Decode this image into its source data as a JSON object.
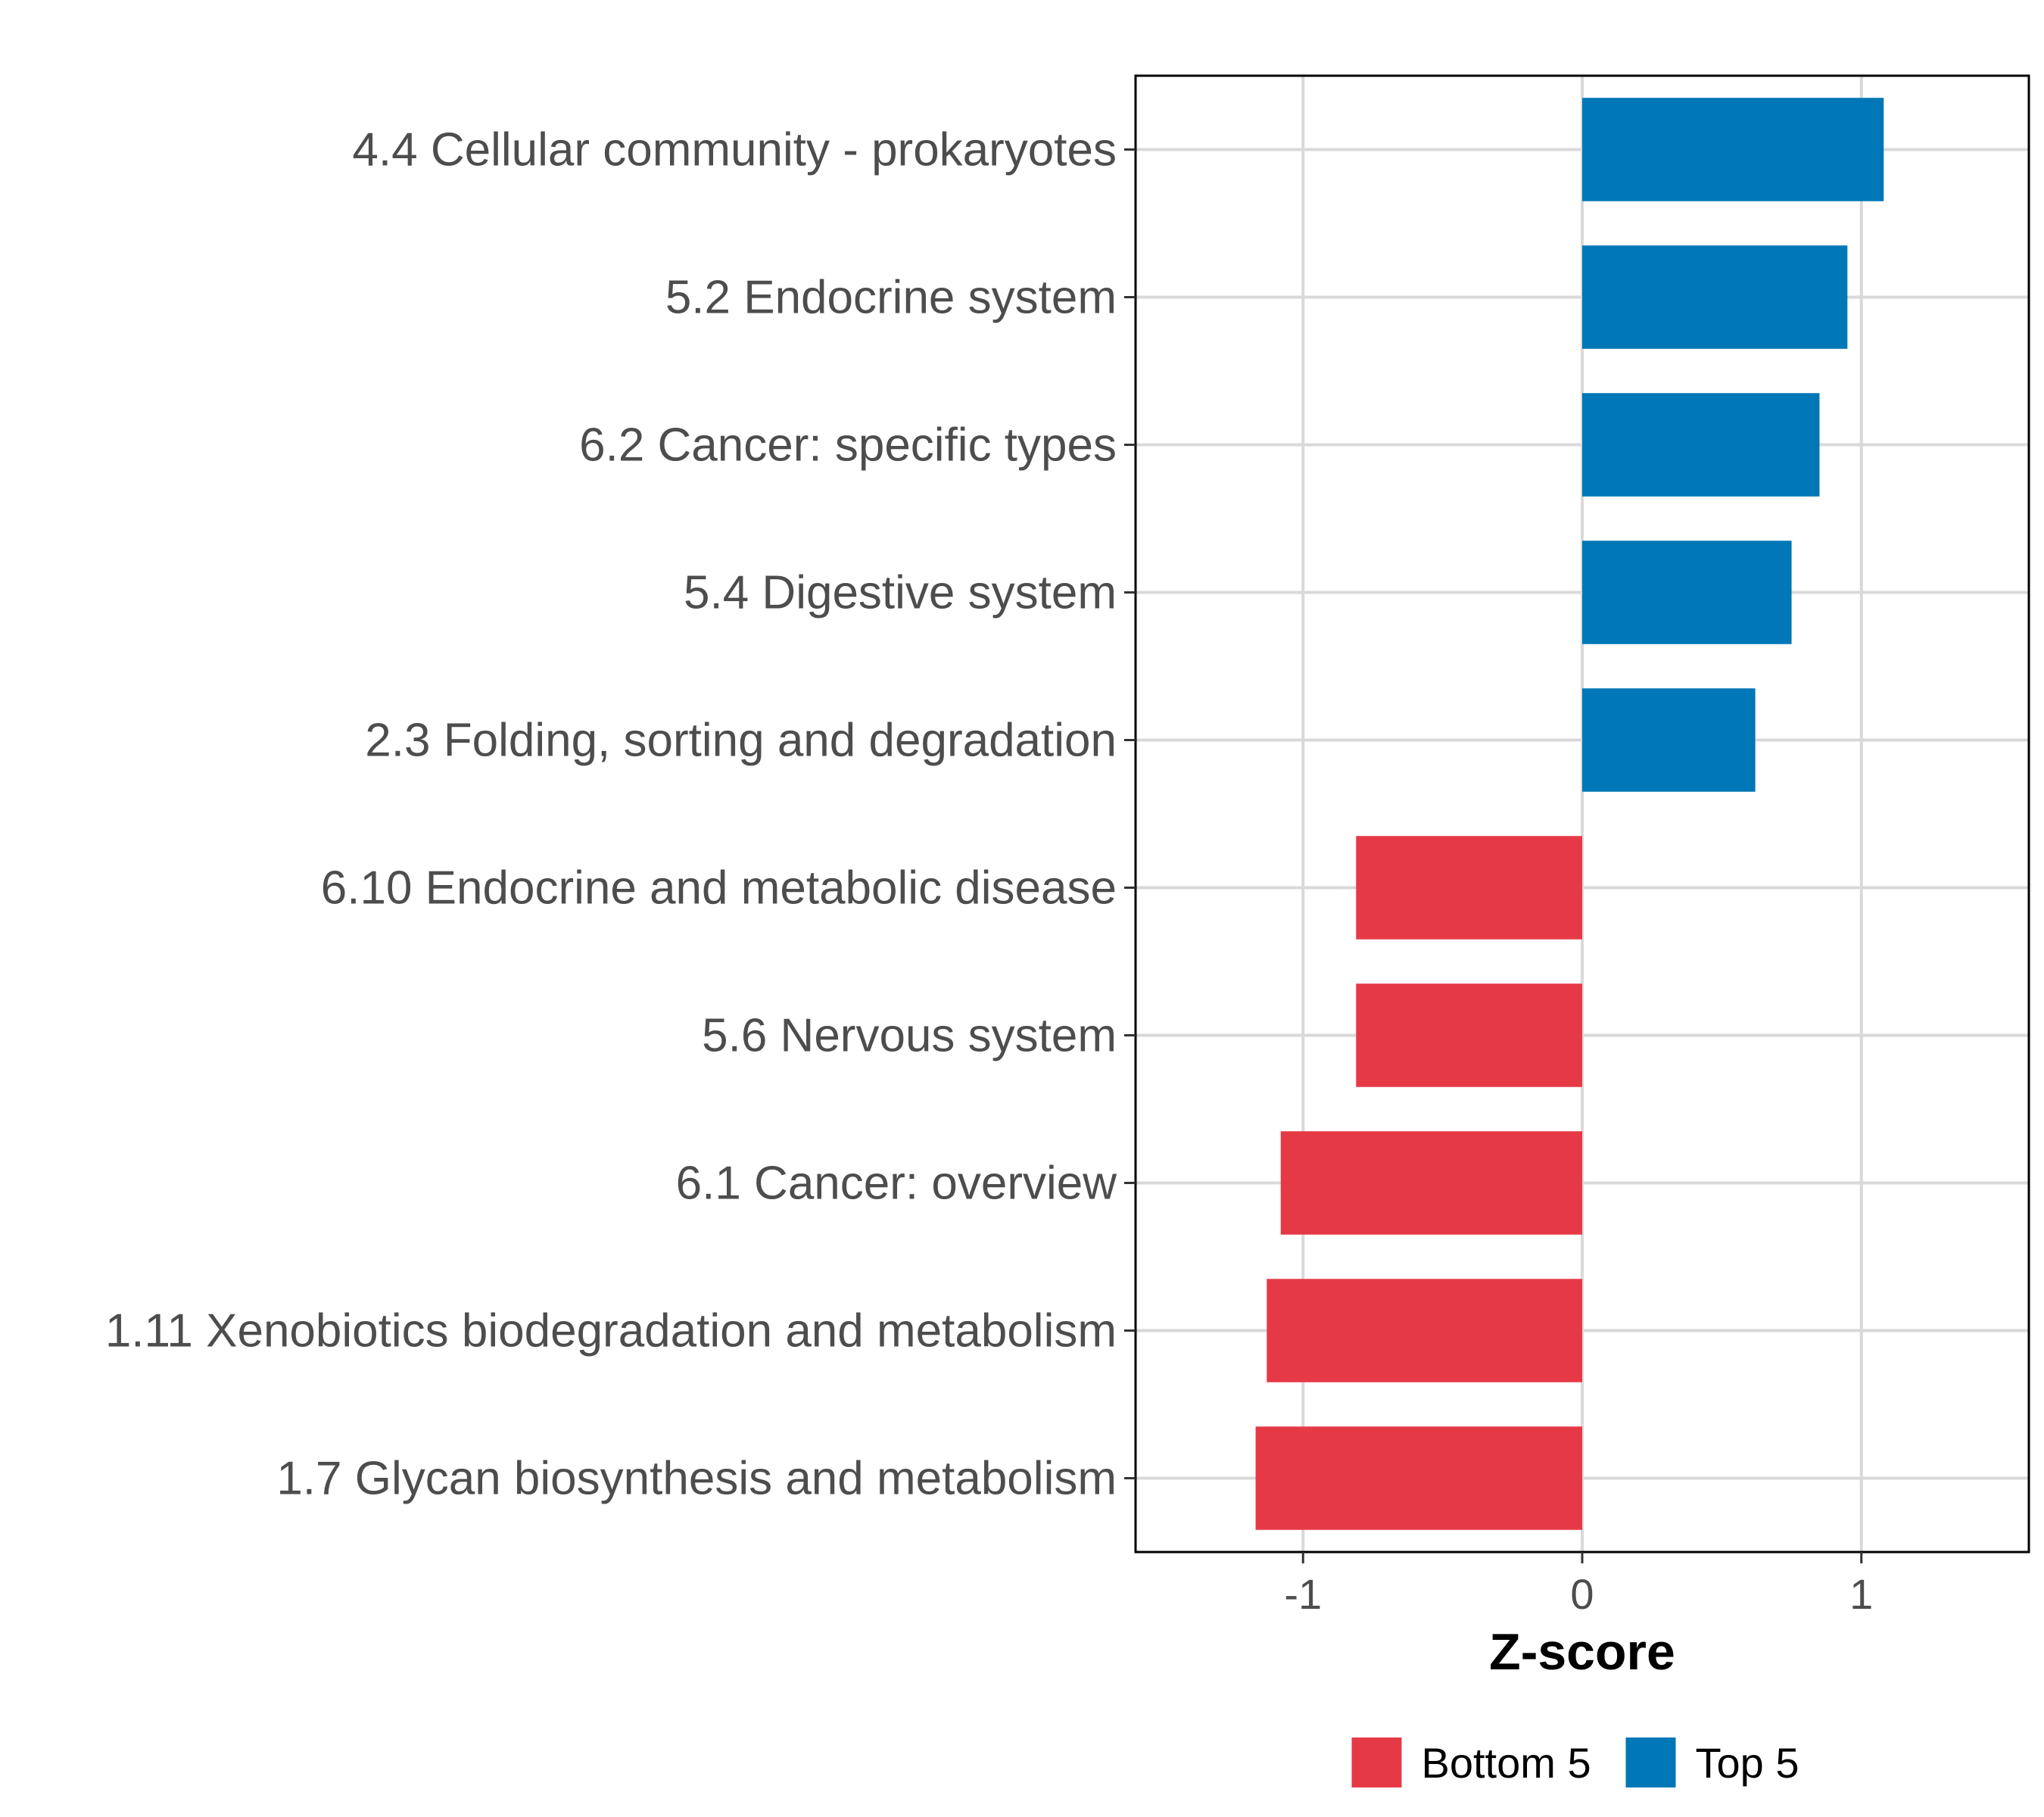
{
  "chart_data": {
    "type": "bar",
    "orientation": "horizontal",
    "title": "",
    "xlabel": "Z-score",
    "ylabel": "",
    "xlim": [
      -1.6,
      1.6
    ],
    "xticks": [
      -1,
      0,
      1
    ],
    "xtick_labels": [
      "-1",
      "0",
      "1"
    ],
    "grid": true,
    "legend_position": "bottom",
    "categories": [
      "4.4 Cellular community - prokaryotes",
      "5.2 Endocrine system",
      "6.2 Cancer: specific types",
      "5.4 Digestive system",
      "2.3 Folding, sorting and degradation",
      "6.10 Endocrine and metabolic disease",
      "5.6 Nervous system",
      "6.1 Cancer: overview",
      "1.11 Xenobiotics biodegradation and metabolism",
      "1.7 Glycan biosynthesis and metabolism"
    ],
    "values": [
      1.08,
      0.95,
      0.85,
      0.75,
      0.62,
      -0.81,
      -0.81,
      -1.08,
      -1.13,
      -1.17
    ],
    "groups": [
      "Top 5",
      "Top 5",
      "Top 5",
      "Top 5",
      "Top 5",
      "Bottom 5",
      "Bottom 5",
      "Bottom 5",
      "Bottom 5",
      "Bottom 5"
    ],
    "legend": [
      {
        "label": "Bottom 5",
        "color": "#e63946"
      },
      {
        "label": "Top 5",
        "color": "#0077b6"
      }
    ]
  }
}
